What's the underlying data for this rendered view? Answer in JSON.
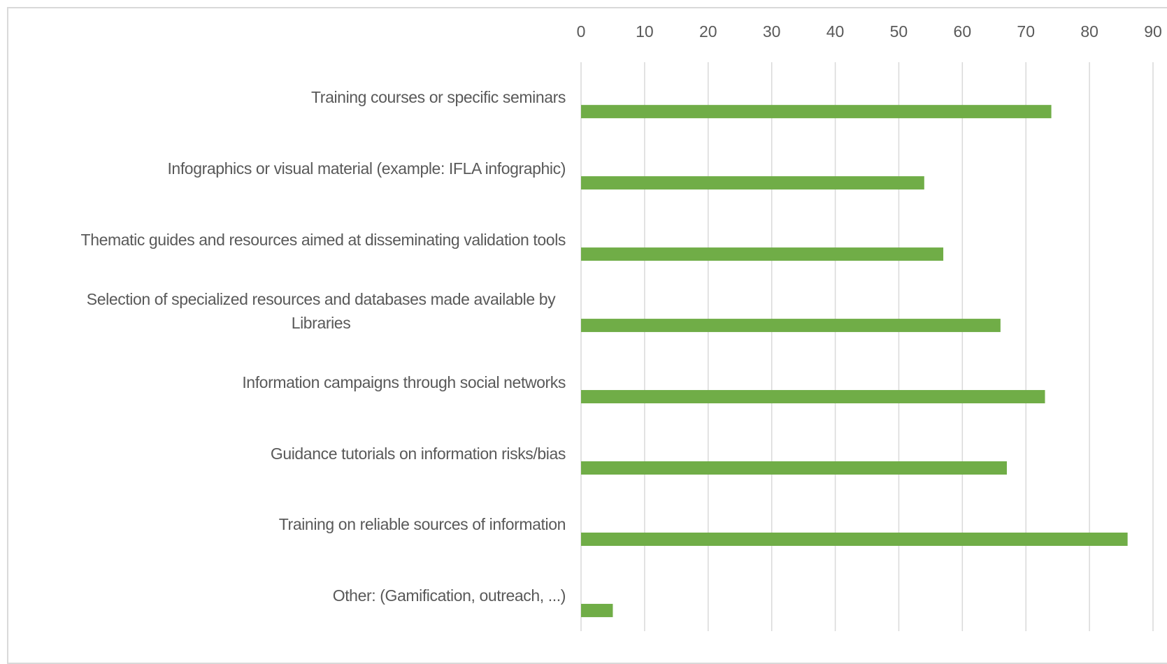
{
  "chart_data": {
    "type": "bar",
    "orientation": "horizontal",
    "categories": [
      "Training courses or specific seminars",
      "Infographics or visual material (example: IFLA infographic)",
      "Thematic guides and resources aimed at disseminating validation tools",
      "Selection of specialized resources and databases made available by Libraries",
      "Information campaigns through social networks",
      "Guidance tutorials on information risks/bias",
      "Training on reliable sources of information",
      "Other: (Gamification, outreach, ...)"
    ],
    "values": [
      74,
      54,
      57,
      66,
      73,
      67,
      86,
      5
    ],
    "color": "#70ad47",
    "xlim": [
      0,
      90
    ],
    "xticks": [
      0,
      10,
      20,
      30,
      40,
      50,
      60,
      70,
      80,
      90
    ],
    "grid": true
  }
}
